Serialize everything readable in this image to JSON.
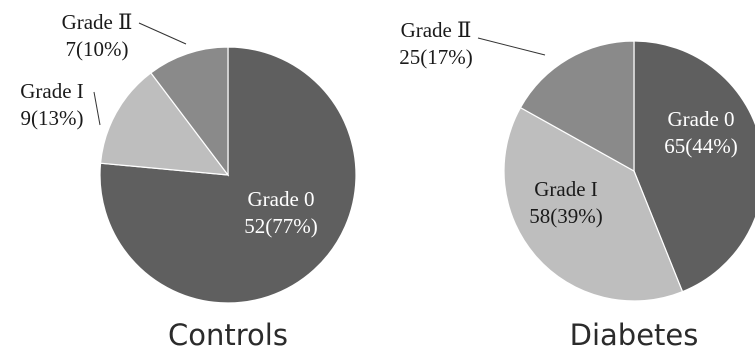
{
  "chart_data": [
    {
      "type": "pie",
      "title": "Controls",
      "start_angle_deg": 0,
      "direction": "clockwise",
      "slices": [
        {
          "key": "g0",
          "label": "Grade 0",
          "count": 52,
          "percent": "77%",
          "color": "#5f5f5f",
          "label_color": "#ffffff"
        },
        {
          "key": "g1",
          "label": "Grade I",
          "count": 9,
          "percent": "13%",
          "color": "#bebebe",
          "label_color": "#1a1a1a"
        },
        {
          "key": "g2",
          "label": "Grade II",
          "count": 7,
          "percent": "10%",
          "color": "#8a8a8a",
          "label_color": "#1a1a1a"
        }
      ]
    },
    {
      "type": "pie",
      "title": "Diabetes",
      "start_angle_deg": 0,
      "direction": "clockwise",
      "slices": [
        {
          "key": "g0",
          "label": "Grade 0",
          "count": 65,
          "percent": "44%",
          "color": "#5f5f5f",
          "label_color": "#ffffff"
        },
        {
          "key": "g1",
          "label": "Grade I",
          "count": 58,
          "percent": "39%",
          "color": "#bebebe",
          "label_color": "#1a1a1a"
        },
        {
          "key": "g2",
          "label": "Grade II",
          "count": 25,
          "percent": "17%",
          "color": "#8a8a8a",
          "label_color": "#1a1a1a"
        }
      ]
    }
  ]
}
